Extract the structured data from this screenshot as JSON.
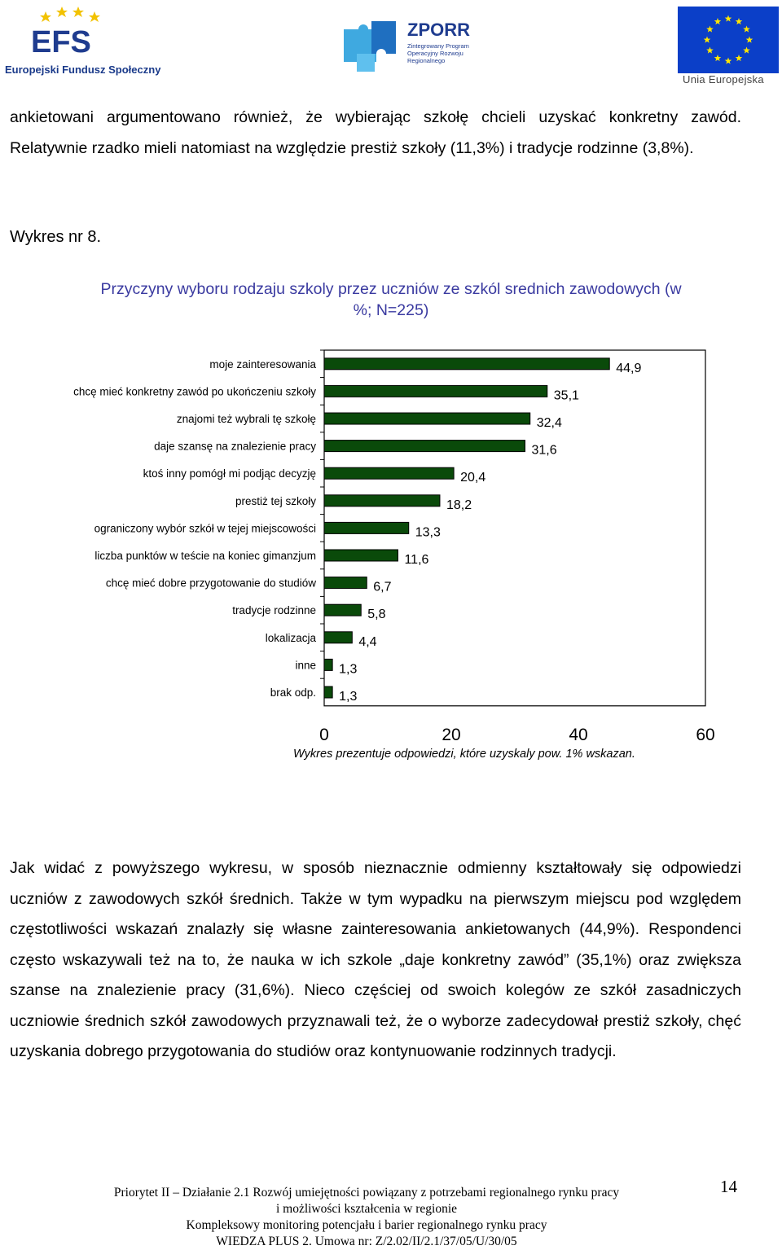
{
  "header": {
    "efs_caption": "Europejski Fundusz Społeczny",
    "zporr_title": "ZPORR",
    "zporr_subtitle": "Zintegrowany Program Operacyjny Rozwoju Regionalnego",
    "eu_caption": "Unia Europejska",
    "efs_icon": "efs-logo-icon",
    "eu_icon": "eu-flag-icon",
    "zporr_icon": "puzzle-icon"
  },
  "text": {
    "paragraph1": "ankietowani argumentowano również, że wybierając szkołę chcieli uzyskać konkretny zawód. Relatywnie rzadko mieli natomiast na względzie prestiż szkoły (11,3%) i tradycje rodzinne (3,8%).",
    "figure_label": "Wykres nr 8.",
    "paragraph2": "Jak widać z powyższego wykresu, w sposób nieznacznie odmienny kształtowały się odpowiedzi uczniów z zawodowych szkół średnich. Także w tym wypadku na pierwszym miejscu pod względem częstotliwości wskazań znalazły się własne zainteresowania ankietowanych (44,9%). Respondenci często wskazywali też na to, że nauka w ich szkole „daje konkretny zawód” (35,1%) oraz zwiększa szanse na znalezienie pracy (31,6%). Nieco częściej od swoich kolegów ze szkół zasadniczych uczniowie średnich szkół zawodowych przyznawali też, że o wyborze zadecydował prestiż szkoły, chęć uzyskania dobrego przygotowania do studiów oraz kontynuowanie rodzinnych tradycji."
  },
  "chart_data": {
    "type": "bar",
    "orientation": "horizontal",
    "title": "Przyczyny wyboru rodzaju szkoly przez uczniów ze szkól srednich zawodowych (w %; N=225)",
    "categories": [
      "moje zainteresowania",
      "chcę mieć konkretny zawód po ukończeniu szkoły",
      "znajomi też wybrali tę szkołę",
      "daje szansę na znalezienie pracy",
      "ktoś inny pomógł mi podjąc decyzję",
      "prestiż tej szkoły",
      "ograniczony wybór szkół w tejej miejscowości",
      "liczba punktów w teście na koniec gimanzjum",
      "chcę mieć dobre przygotowanie do studiów",
      "tradycje rodzinne",
      "lokalizacja",
      "inne",
      "brak odp."
    ],
    "values": [
      44.9,
      35.1,
      32.4,
      31.6,
      20.4,
      18.2,
      13.3,
      11.6,
      6.7,
      5.8,
      4.4,
      1.3,
      1.3
    ],
    "value_labels": [
      "44,9",
      "35,1",
      "32,4",
      "31,6",
      "20,4",
      "18,2",
      "13,3",
      "11,6",
      "6,7",
      "5,8",
      "4,4",
      "1,3",
      "1,3"
    ],
    "x_ticks": [
      "0",
      "20",
      "40",
      "60"
    ],
    "xlim": [
      0,
      60
    ],
    "bar_color": "#0a4a0a",
    "grid": false,
    "note": "Wykres prezentuje odpowiedzi, które uzyskaly pow. 1% wskazan."
  },
  "footer": {
    "line1": "Priorytet II – Działanie 2.1 Rozwój umiejętności powiązany z potrzebami regionalnego rynku pracy",
    "line2": "i możliwości kształcenia w regionie",
    "line3": "Kompleksowy monitoring potencjału i barier regionalnego rynku pracy",
    "line4": "WIEDZA PLUS 2. Umowa nr: Z/2.02/II/2.1/37/05/U/30/05",
    "page_number": "14"
  }
}
